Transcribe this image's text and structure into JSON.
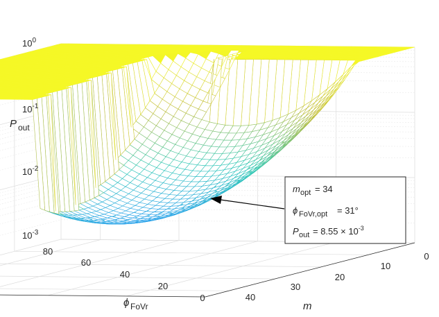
{
  "chart_data": {
    "type": "surface",
    "title": "",
    "x_axis": {
      "label": "m",
      "ticks": [
        "0",
        "10",
        "20",
        "30",
        "40"
      ],
      "range": [
        0,
        45
      ]
    },
    "y_axis": {
      "label_main": "ϕ",
      "label_sub": "FoVr",
      "ticks": [
        "0",
        "20",
        "40",
        "60",
        "80"
      ],
      "range": [
        0,
        90
      ]
    },
    "z_axis": {
      "label_main": "P",
      "label_sub": "out",
      "scale": "log",
      "range": [
        0.001,
        1
      ],
      "ticks": [
        {
          "value": 0.001,
          "base": "10",
          "exp": "-3"
        },
        {
          "value": 0.01,
          "base": "10",
          "exp": "-2"
        },
        {
          "value": 0.1,
          "base": "10",
          "exp": "-1"
        },
        {
          "value": 1,
          "base": "10",
          "exp": "0"
        }
      ]
    },
    "grid": true,
    "colormap": [
      "#3e26a8",
      "#2f97ff",
      "#2dc7b6",
      "#c3be3c",
      "#f5f826"
    ],
    "annotation": {
      "m_label": "m",
      "m_sub": "opt",
      "m_value": "= 34",
      "phi_label": "ϕ",
      "phi_sub": "FoVr,opt",
      "phi_value": "= 31°",
      "p_label": "P",
      "p_sub": "out",
      "p_value": "= 8.55 × 10",
      "p_exp": "-3"
    },
    "optimum": {
      "m": 34,
      "phi": 31,
      "p_out": 0.00855
    }
  }
}
